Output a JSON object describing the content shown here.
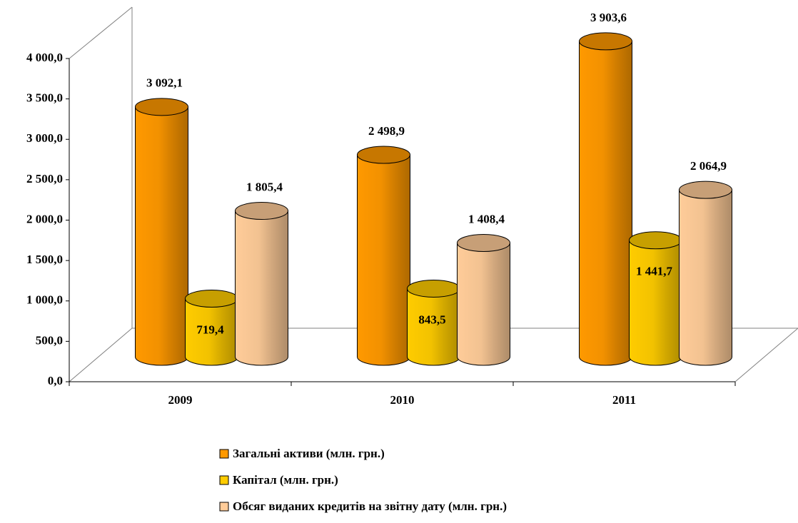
{
  "chart_data": {
    "type": "bar3d",
    "categories": [
      "2009",
      "2010",
      "2011"
    ],
    "series": [
      {
        "name": "Загальні активи (млн. грн.)",
        "color": "#ff9900",
        "values": [
          3092.1,
          2498.9,
          3903.6
        ],
        "value_labels": [
          "3 092,1",
          "2 498,9",
          "3 903,6"
        ]
      },
      {
        "name": "Капітал (млн. грн.)",
        "color": "#ffcc00",
        "values": [
          719.4,
          843.5,
          1441.7
        ],
        "value_labels": [
          "719,4",
          "843,5",
          "1 441,7"
        ]
      },
      {
        "name": "Обсяг виданих кредитів на звітну дату (млн. грн.)",
        "color": "#ffcc99",
        "values": [
          1805.4,
          1408.4,
          2064.9
        ],
        "value_labels": [
          "1 805,4",
          "1 408,4",
          "2 064,9"
        ]
      }
    ],
    "ylim": [
      0,
      4000
    ],
    "yticks": [
      {
        "value": 0,
        "label": "0,0"
      },
      {
        "value": 500,
        "label": "500,0"
      },
      {
        "value": 1000,
        "label": "1 000,0"
      },
      {
        "value": 1500,
        "label": "1 500,0"
      },
      {
        "value": 2000,
        "label": "2 000,0"
      },
      {
        "value": 2500,
        "label": "2 500,0"
      },
      {
        "value": 3000,
        "label": "3 000,0"
      },
      {
        "value": 3500,
        "label": "3 500,0"
      },
      {
        "value": 4000,
        "label": "4 000,0"
      }
    ],
    "legend": "bottom"
  }
}
